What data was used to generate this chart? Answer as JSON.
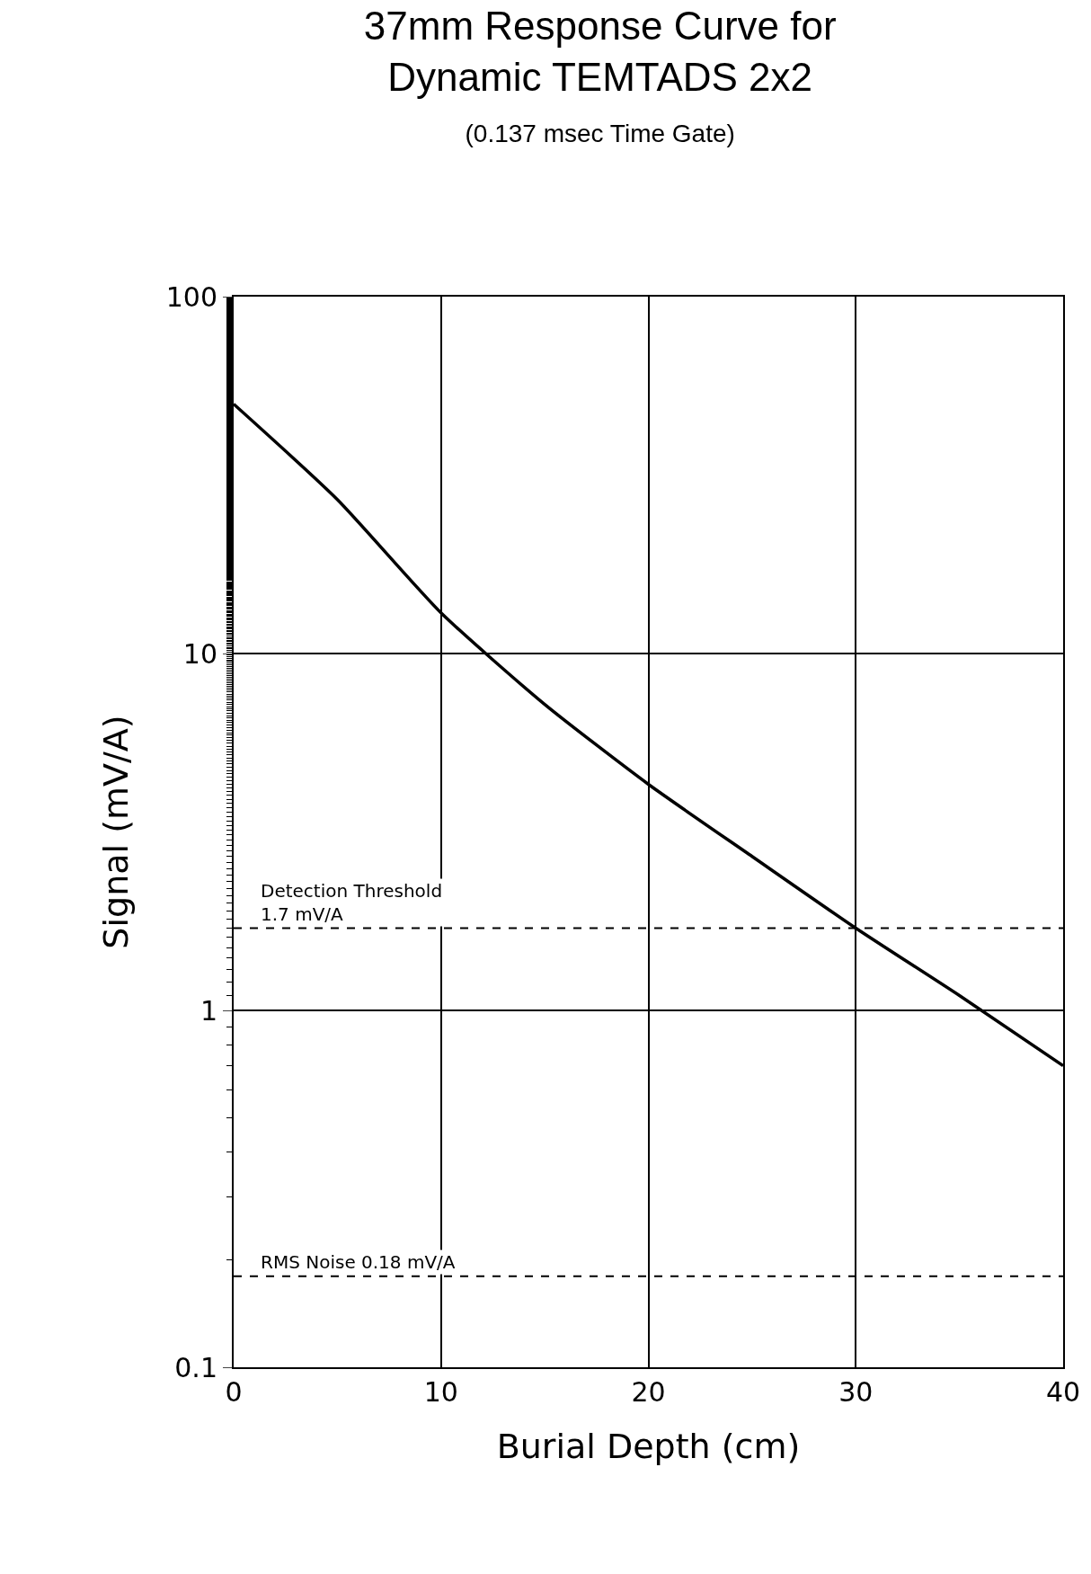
{
  "chart_data": {
    "type": "line",
    "title": "37mm Response Curve for\nDynamic TEMTADS 2x2",
    "subtitle": "(0.137 msec Time Gate)",
    "xlabel": "Burial Depth (cm)",
    "ylabel": "Signal (mV/A)",
    "x": [
      0,
      5,
      10,
      15,
      20,
      25,
      30,
      35,
      40
    ],
    "series": [
      {
        "color": "#000000",
        "values": [
          50,
          27,
          13,
          7.2,
          4.3,
          2.7,
          1.7,
          1.1,
          0.7
        ]
      }
    ],
    "xlim": [
      0,
      40
    ],
    "xticks": [
      0,
      10,
      20,
      30,
      40
    ],
    "ylim": [
      0.1,
      100
    ],
    "yticks": [
      0.1,
      1,
      10,
      100
    ],
    "log": true,
    "grid": true,
    "legend": false,
    "marker": "none",
    "line_style": "solid",
    "ref_lines": [
      {
        "axis": "y",
        "value": 1.7,
        "label": "Detection Threshold\n1.7 mV/A",
        "color": "#000000",
        "line_style": "dashed"
      },
      {
        "axis": "y",
        "value": 0.18,
        "label": "RMS Noise 0.18 mV/A",
        "color": "#000000",
        "line_style": "dashed"
      }
    ]
  }
}
